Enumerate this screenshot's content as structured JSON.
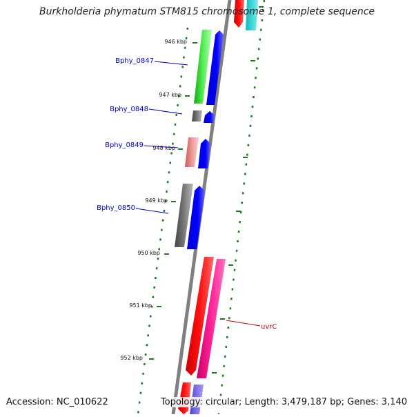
{
  "title": "Burkholderia phymatum STM815 chromosome 1, complete sequence",
  "footer": {
    "accession": "Accession: NC_010622",
    "topology": "Topology: circular; Length: 3,479,187 bp; Genes: 3,140"
  },
  "ticks": [
    {
      "label": "946 kbp"
    },
    {
      "label": "947 kbp"
    },
    {
      "label": "948 kbp"
    },
    {
      "label": "949 kbp"
    },
    {
      "label": "950 kbp"
    },
    {
      "label": "951 kbp"
    },
    {
      "label": "952 kbp"
    }
  ],
  "gene_labels": [
    {
      "label": "Bphy_0847",
      "color": "#0000cc"
    },
    {
      "label": "Bphy_0848",
      "color": "#0000cc"
    },
    {
      "label": "Bphy_0849",
      "color": "#0000cc"
    },
    {
      "label": "Bphy_0850",
      "color": "#0000cc"
    },
    {
      "label": "uvrC",
      "color": "#cc0000"
    }
  ],
  "colors": {
    "backbone": "#808080",
    "tick": "#1a7a1a",
    "cds": "#0000ee",
    "uvrC_gene": "#ee0000",
    "uvrC_cds": "#ee1188",
    "green_gene": "#33cc33",
    "gray_gene": "#666666",
    "pink_gene": "#e88888",
    "cyan_gene": "#22cccc",
    "purple_gene": "#7766dd"
  }
}
